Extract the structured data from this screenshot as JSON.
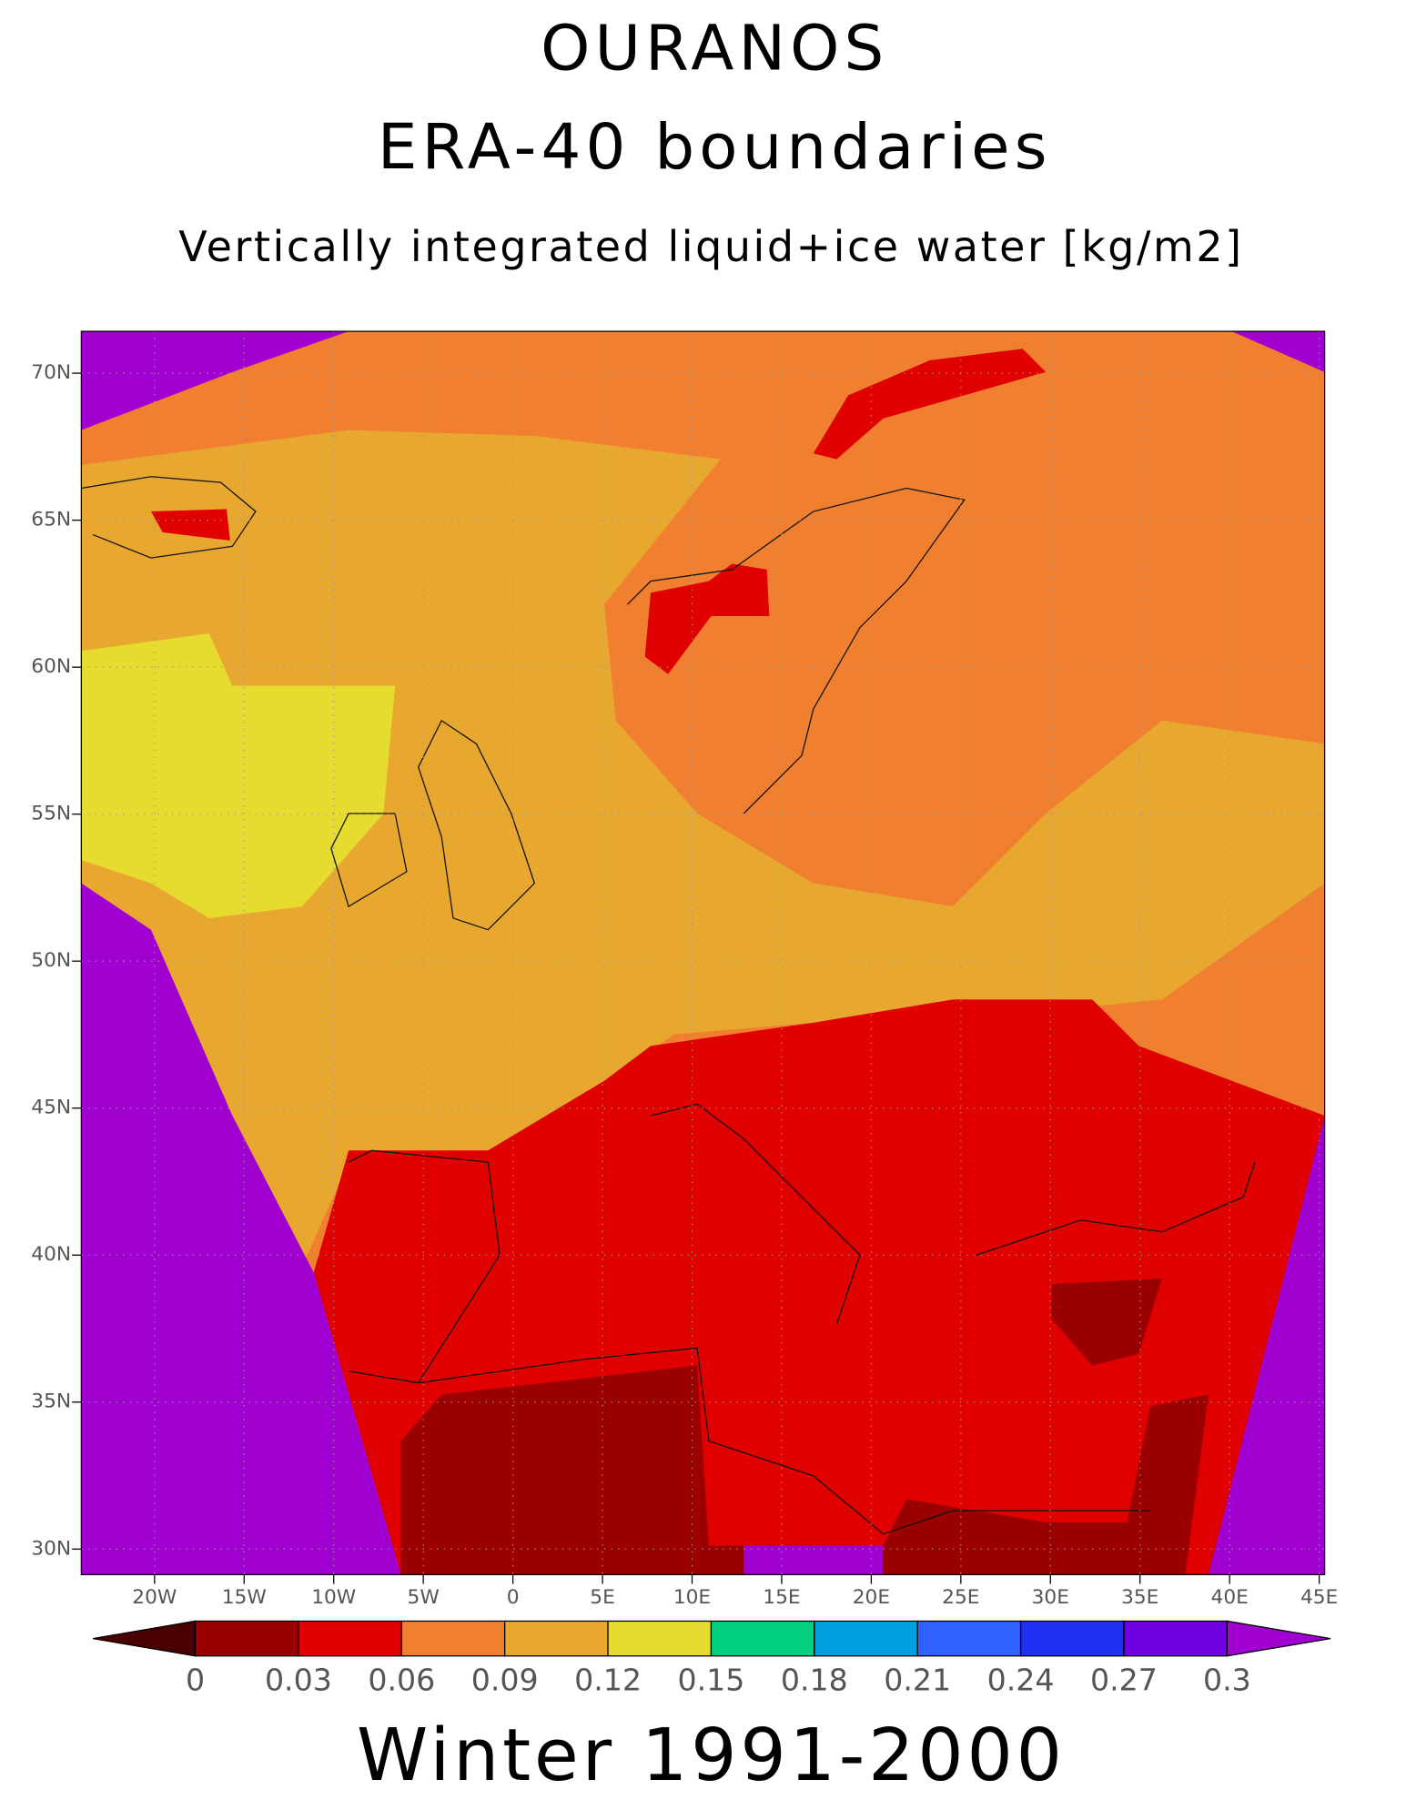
{
  "header": {
    "title": "OURANOS",
    "subtitle": "ERA-40 boundaries",
    "variable": "Vertically integrated liquid+ice water [kg/m2]"
  },
  "map": {
    "lat_ticks": [
      "70N",
      "65N",
      "60N",
      "55N",
      "50N",
      "45N",
      "40N",
      "35N",
      "30N"
    ],
    "lon_ticks": [
      "20W",
      "15W",
      "10W",
      "5W",
      "0",
      "5E",
      "10E",
      "15E",
      "20E",
      "25E",
      "30E",
      "35E",
      "40E",
      "45E"
    ]
  },
  "colorbar": {
    "levels": [
      0,
      0.03,
      0.06,
      0.09,
      0.12,
      0.15,
      0.18,
      0.21,
      0.24,
      0.27,
      0.3
    ],
    "colors": [
      "#4a0000",
      "#9b0000",
      "#e00000",
      "#f08030",
      "#e8a830",
      "#e6dc30",
      "#00d080",
      "#00a0e0",
      "#3060ff",
      "#2030f0",
      "#7000e0",
      "#a000d0"
    ]
  },
  "footer": "Winter 1991-2000"
}
